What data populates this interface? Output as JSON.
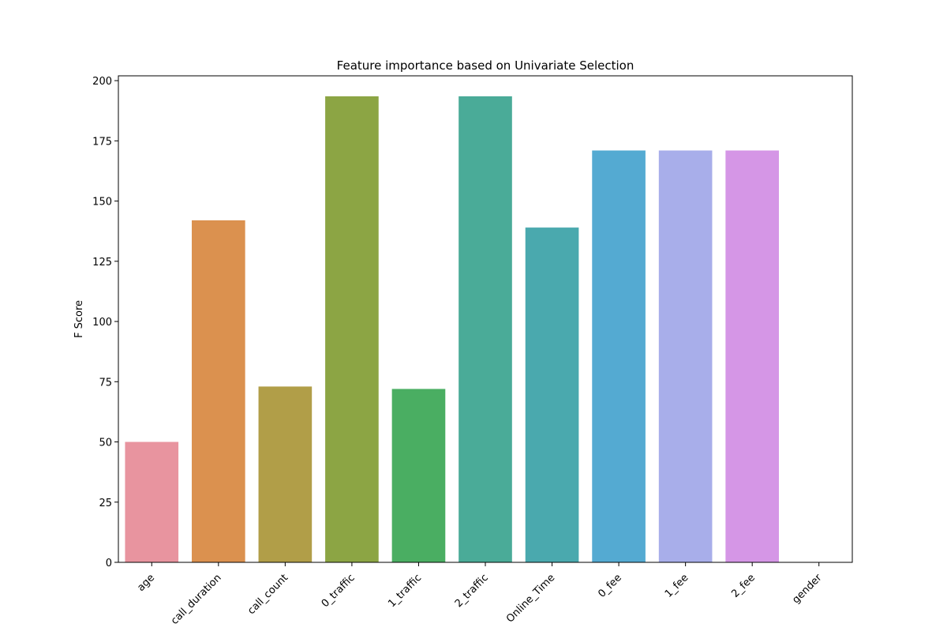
{
  "chart_data": {
    "type": "bar",
    "title": "Feature importance based on Univariate Selection",
    "xlabel": "",
    "ylabel": "F Score",
    "categories": [
      "age",
      "call_duration",
      "call_count",
      "0_traffic",
      "1_traffic",
      "2_traffic",
      "Online_Time",
      "0_fee",
      "1_fee",
      "2_fee",
      "gender"
    ],
    "values": [
      50,
      142,
      73,
      193.5,
      72,
      193.5,
      139,
      171,
      171,
      171,
      0
    ],
    "colors": [
      "#e8949f",
      "#db914f",
      "#b19e48",
      "#8ca544",
      "#4aae62",
      "#4aab98",
      "#4aa9ae",
      "#54aad2",
      "#a8aeea",
      "#d596e6",
      "#eb8fbd"
    ],
    "ylim": [
      0,
      202
    ],
    "yticks": [
      0,
      25,
      50,
      75,
      100,
      125,
      150,
      175,
      200
    ],
    "grid": false,
    "legend": "none"
  }
}
